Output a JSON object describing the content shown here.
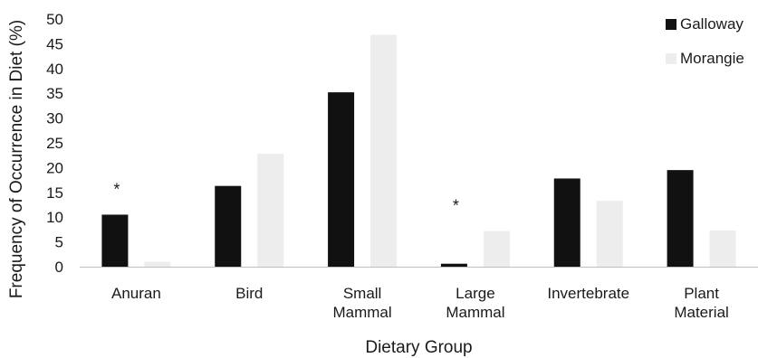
{
  "chart_data": {
    "type": "bar",
    "title": "",
    "xlabel": "Dietary Group",
    "ylabel": "Frequency of Occurrence in Diet (%)",
    "ylim": [
      0,
      50
    ],
    "yticks": [
      0,
      5,
      10,
      15,
      20,
      25,
      30,
      35,
      40,
      45,
      50
    ],
    "categories": [
      [
        "Anuran"
      ],
      [
        "Bird"
      ],
      [
        "Small",
        "Mammal"
      ],
      [
        "Large",
        "Mammal"
      ],
      [
        "Invertebrate"
      ],
      [
        "Plant",
        "Material"
      ]
    ],
    "series": [
      {
        "name": "Galloway",
        "color": "#111111",
        "values": [
          10.5,
          16.3,
          35.2,
          0.6,
          17.8,
          19.5
        ]
      },
      {
        "name": "Morangie",
        "color": "#ededed",
        "values": [
          1.0,
          22.8,
          46.8,
          7.2,
          13.3,
          7.3
        ]
      }
    ],
    "annotations": [
      {
        "category_index": 0,
        "text": "*"
      },
      {
        "category_index": 3,
        "text": "*"
      }
    ],
    "legend_position": "top-right",
    "grid": false
  }
}
